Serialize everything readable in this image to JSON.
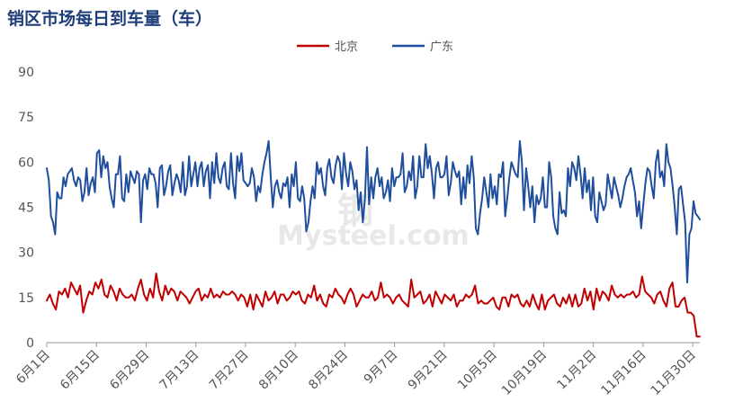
{
  "chart_data": {
    "type": "line",
    "title": "销区市场每日到车量（车）",
    "watermark": [
      "钢",
      "Mysteel.com"
    ],
    "ylim": [
      0,
      90
    ],
    "yticks": [
      0,
      15,
      30,
      45,
      60,
      75,
      90
    ],
    "x_tick_labels": [
      "6月1日",
      "6月15日",
      "6月29日",
      "7月13日",
      "7月27日",
      "8月10日",
      "8月24日",
      "9月7日",
      "9月21日",
      "10月5日",
      "10月19日",
      "11月2日",
      "11月16日",
      "11月30日"
    ],
    "x_tick_days": [
      0,
      14,
      28,
      42,
      56,
      70,
      84,
      98,
      112,
      126,
      140,
      154,
      168,
      182
    ],
    "x_range_days": [
      0,
      184
    ],
    "grid": false,
    "legend_position": "top-center",
    "series": [
      {
        "name": "北京",
        "color": "#c00000",
        "values": [
          14,
          16,
          13,
          11,
          17,
          16,
          18,
          15,
          20,
          18,
          16,
          19,
          10,
          14,
          17,
          16,
          20,
          18,
          21,
          16,
          15,
          19,
          17,
          14,
          18,
          16,
          15,
          15,
          16,
          14,
          18,
          21,
          16,
          14,
          18,
          15,
          23,
          17,
          14,
          19,
          16,
          18,
          17,
          14,
          17,
          16,
          15,
          13,
          15,
          17,
          18,
          14,
          16,
          15,
          18,
          15,
          16,
          15,
          17,
          16,
          16,
          17,
          16,
          14,
          16,
          15,
          12,
          16,
          11,
          16,
          14,
          12,
          17,
          14,
          15,
          17,
          13,
          16,
          16,
          14,
          15,
          17,
          16,
          17,
          14,
          13,
          16,
          15,
          19,
          14,
          16,
          13,
          12,
          16,
          15,
          18,
          16,
          15,
          13,
          16,
          18,
          16,
          12,
          14,
          16,
          15,
          15,
          17,
          14,
          15,
          20,
          15,
          16,
          15,
          13,
          15,
          16,
          14,
          13,
          12,
          21,
          15,
          16,
          17,
          13,
          14,
          16,
          12,
          17,
          15,
          13,
          16,
          15,
          14,
          16,
          12,
          14,
          14,
          16,
          15,
          16,
          19,
          13,
          14,
          13,
          13,
          14,
          15,
          12,
          11,
          15,
          15,
          12,
          16,
          15,
          16,
          13,
          12,
          14,
          12,
          16,
          13,
          11,
          16,
          11,
          14,
          15,
          16,
          13,
          12,
          15,
          13,
          16,
          12,
          16,
          12,
          13,
          18,
          14,
          17,
          11,
          18,
          14,
          17,
          16,
          14,
          19,
          16,
          15,
          16,
          15,
          16,
          16,
          17,
          15,
          16,
          22,
          17,
          16,
          15,
          13,
          16,
          17,
          14,
          12,
          18,
          20,
          12,
          12,
          14,
          15,
          10,
          10,
          9,
          2,
          2
        ],
        "approx_points": "reading dense daily series"
      },
      {
        "name": "广东",
        "color": "#1f4e9c",
        "values": [
          58,
          54,
          42,
          40,
          36,
          50,
          48,
          48,
          55,
          52,
          56,
          57,
          58,
          54,
          52,
          55,
          54,
          47,
          50,
          58,
          49,
          53,
          55,
          50,
          63,
          64,
          55,
          62,
          58,
          60,
          52,
          48,
          45,
          56,
          56,
          62,
          48,
          47,
          56,
          50,
          57,
          55,
          53,
          57,
          56,
          40,
          54,
          56,
          51,
          58,
          56,
          56,
          53,
          45,
          58,
          59,
          49,
          52,
          57,
          59,
          49,
          53,
          56,
          54,
          50,
          60,
          49,
          52,
          62,
          52,
          56,
          60,
          52,
          58,
          60,
          52,
          57,
          59,
          48,
          60,
          53,
          63,
          55,
          53,
          58,
          60,
          52,
          51,
          63,
          53,
          48,
          62,
          57,
          63,
          54,
          53,
          52,
          53,
          58,
          55,
          47,
          52,
          50,
          56,
          60,
          63,
          67,
          55,
          45,
          52,
          54,
          50,
          48,
          53,
          52,
          55,
          45,
          56,
          52,
          60,
          48,
          47,
          52,
          48,
          37,
          40,
          47,
          52,
          48,
          60,
          56,
          58,
          52,
          49,
          58,
          61,
          55,
          53,
          59,
          62,
          60,
          51,
          63,
          56,
          52,
          60,
          57,
          51,
          54,
          44,
          50,
          40,
          48,
          65,
          46,
          55,
          48,
          55,
          58,
          52,
          55,
          48,
          50,
          54,
          47,
          58,
          52,
          55,
          55,
          56,
          63,
          50,
          52,
          57,
          54,
          62,
          48,
          52,
          62,
          55,
          55,
          66,
          58,
          62,
          56,
          48,
          58,
          60,
          55,
          55,
          56,
          62,
          49,
          53,
          60,
          57,
          55,
          57,
          46,
          55,
          48,
          59,
          53,
          62,
          55,
          38,
          36,
          43,
          48,
          55,
          50,
          45,
          56,
          48,
          52,
          46,
          56,
          55,
          60,
          42,
          48,
          55,
          60,
          58,
          56,
          55,
          67,
          60,
          44,
          58,
          52,
          45,
          52,
          40,
          49,
          46,
          48,
          55,
          45,
          45,
          60,
          55,
          42,
          38,
          36,
          50,
          43,
          44,
          42,
          58,
          52,
          60,
          58,
          54,
          62,
          56,
          48,
          58,
          50,
          54,
          44,
          55,
          42,
          40,
          50,
          47,
          44,
          46,
          56,
          52,
          48,
          55,
          52,
          49,
          45,
          48,
          52,
          55,
          56,
          58,
          54,
          50,
          42,
          47,
          38,
          46,
          53,
          58,
          57,
          52,
          48,
          60,
          64,
          55,
          57,
          52,
          66,
          60,
          58,
          52,
          45,
          36,
          51,
          52,
          46,
          40,
          20,
          36,
          38,
          47,
          43,
          42,
          41
        ],
        "approx_points": "reading dense daily series"
      }
    ]
  }
}
